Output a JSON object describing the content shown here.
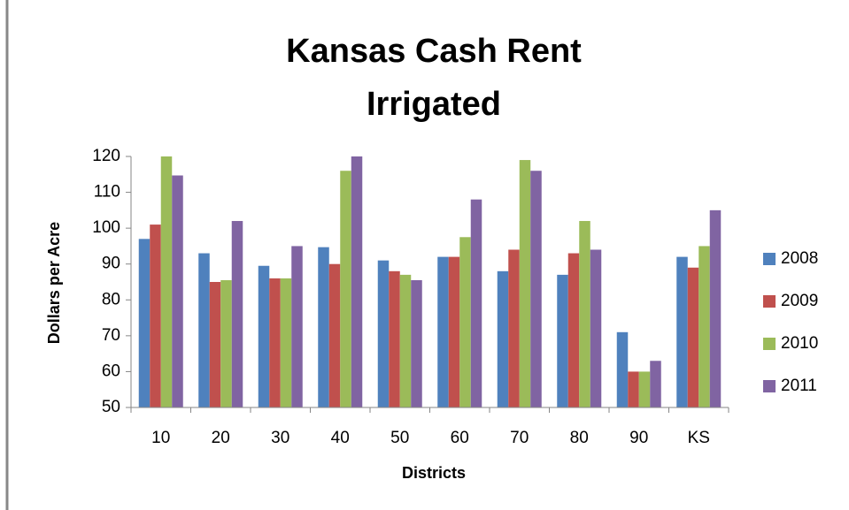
{
  "chart_data": {
    "type": "bar",
    "title": [
      "Kansas Cash Rent",
      "Irrigated"
    ],
    "x_label": "Districts",
    "y_label": "Dollars per Acre",
    "categories": [
      "10",
      "20",
      "30",
      "40",
      "50",
      "60",
      "70",
      "80",
      "90",
      "KS"
    ],
    "series": [
      {
        "name": "2008",
        "color": "#4f81bd",
        "values": [
          97,
          93,
          89.5,
          94.7,
          91,
          92,
          88,
          87,
          71,
          92
        ]
      },
      {
        "name": "2009",
        "color": "#c0504d",
        "values": [
          101,
          85,
          86,
          90,
          88,
          92,
          94,
          93,
          60,
          89
        ]
      },
      {
        "name": "2010",
        "color": "#9bbb59",
        "values": [
          120,
          85.5,
          86,
          116,
          87,
          97.5,
          119,
          102,
          60,
          95
        ]
      },
      {
        "name": "2011",
        "color": "#8064a2",
        "values": [
          114.7,
          102,
          95,
          120,
          85.5,
          108,
          116,
          94,
          63,
          105
        ]
      }
    ],
    "ylim": [
      50,
      120
    ],
    "yticks": [
      50,
      60,
      70,
      80,
      90,
      100,
      110,
      120
    ],
    "grid": false,
    "legend": "right"
  }
}
